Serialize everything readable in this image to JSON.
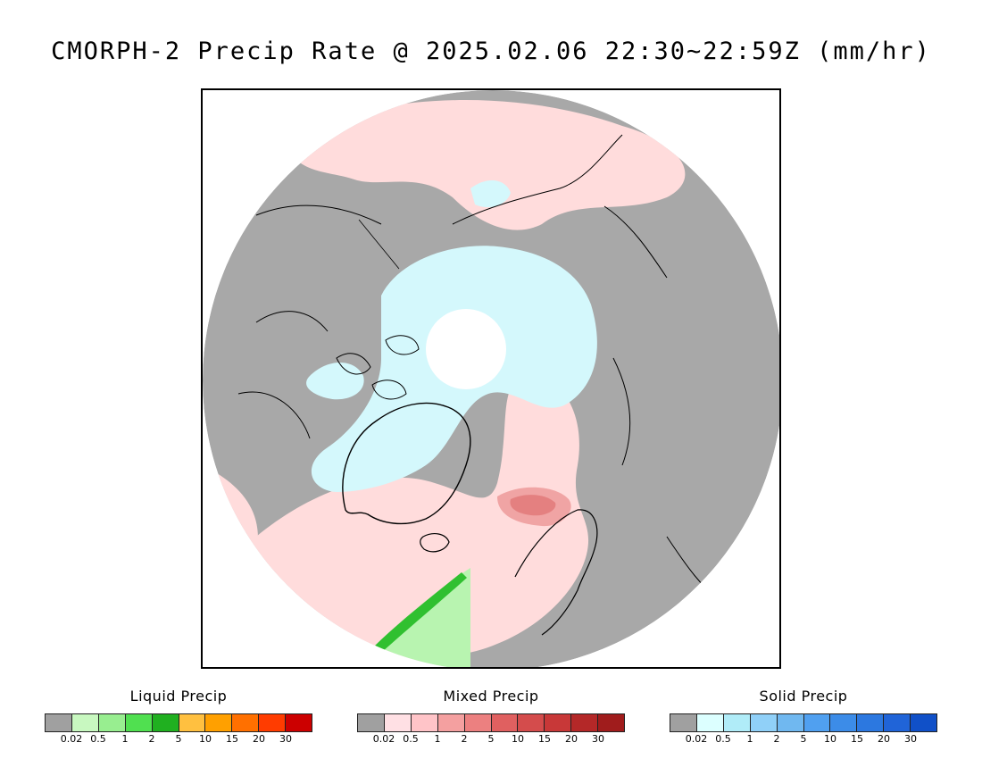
{
  "title": "CMORPH-2 Precip Rate @ 2025.02.06 22:30~22:59Z (mm/hr)",
  "map": {
    "projection": "north-polar-stereographic",
    "colors": {
      "no_precip": "#a8a8a8",
      "outside": "#ffffff",
      "coastline": "#000000",
      "pole_hole": "#ffffff"
    }
  },
  "legends": [
    {
      "title": "Liquid Precip",
      "colors": [
        "#a0a0a0",
        "#c8f8c0",
        "#98ee90",
        "#50e050",
        "#20b020",
        "#ffc040",
        "#ffa000",
        "#ff7000",
        "#ff3c00",
        "#cc0000"
      ],
      "ticks": [
        "0.02",
        "0.5",
        "1",
        "2",
        "5",
        "10",
        "15",
        "20",
        "30"
      ]
    },
    {
      "title": "Mixed Precip",
      "colors": [
        "#a0a0a0",
        "#ffe0e4",
        "#ffc4c8",
        "#f4a0a0",
        "#ec8080",
        "#e06060",
        "#d44c4c",
        "#c83838",
        "#b42828",
        "#a01c1c"
      ],
      "ticks": [
        "0.02",
        "0.5",
        "1",
        "2",
        "5",
        "10",
        "15",
        "20",
        "30"
      ]
    },
    {
      "title": "Solid Precip",
      "colors": [
        "#a0a0a0",
        "#dcffff",
        "#b0ecf8",
        "#90d0f8",
        "#70b8f0",
        "#50a0f0",
        "#3c8ce8",
        "#2c78e0",
        "#2064d8",
        "#1050c8"
      ],
      "ticks": [
        "0.02",
        "0.5",
        "1",
        "2",
        "5",
        "10",
        "15",
        "20",
        "30"
      ]
    }
  ]
}
